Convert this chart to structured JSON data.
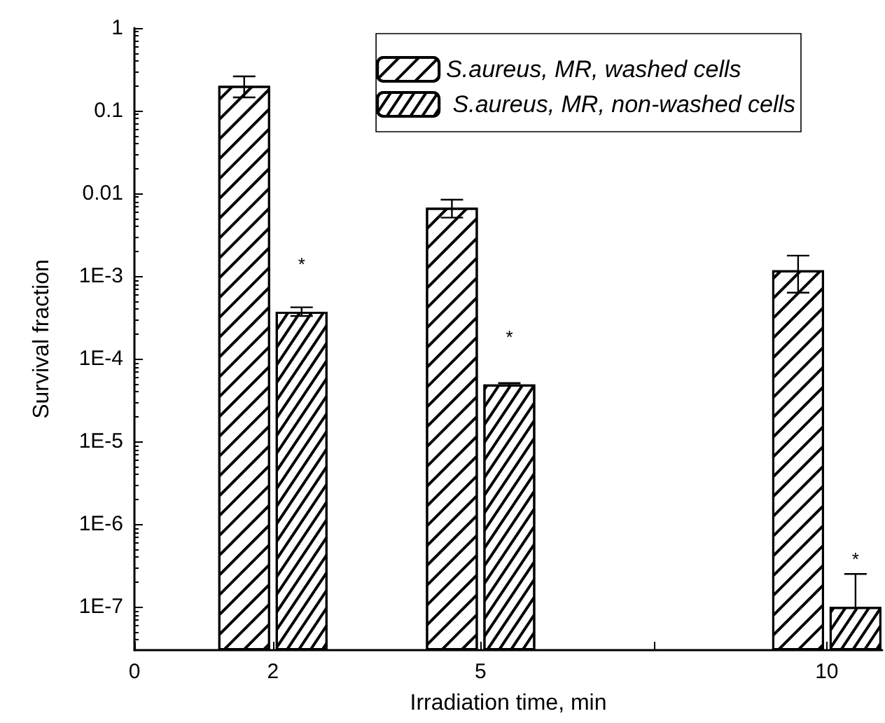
{
  "chart_data": {
    "type": "bar",
    "xlabel": "Irradiation time, min",
    "ylabel": "Survival fraction",
    "x": [
      2,
      5,
      10
    ],
    "series": [
      {
        "name": "S.aureus, MR, washed cells",
        "color": "#ffffff",
        "values": [
          0.2,
          0.0067,
          0.00118
        ],
        "errors": [
          [
            0.145,
            0.26
          ],
          [
            0.0051,
            0.0084
          ],
          [
            0.00063,
            0.00177
          ]
        ]
      },
      {
        "name": " S.aureus, MR, non-washed cells",
        "color": "#ffffff",
        "values": [
          0.00037,
          4.9e-05,
          1e-07
        ],
        "errors": [
          [
            0.00033,
            0.00042
          ],
          [
            4.8e-05,
            5.1e-05
          ],
          [
            1e-07,
            2.5e-07
          ]
        ]
      }
    ],
    "log": "y",
    "xlim": [
      0,
      10.8
    ],
    "xticks": [
      0,
      2,
      5,
      {
        "value": 7.5,
        "label": null
      },
      10
    ],
    "ylim": [
      3e-08,
      1
    ],
    "yticks": [
      {
        "value": 1e-07,
        "label": "1E-7"
      },
      {
        "value": 1e-06,
        "label": "1E-6"
      },
      {
        "value": 1e-05,
        "label": "1E-5"
      },
      {
        "value": 0.0001,
        "label": "1E-4"
      },
      {
        "value": 0.001,
        "label": "1E-3"
      },
      0.01,
      0.1,
      1
    ],
    "annotations": [
      {
        "text": "*",
        "x": 2,
        "y": 0.00037
      },
      {
        "text": "*",
        "x": 5,
        "y": 4.9e-05
      },
      {
        "text": "*",
        "x": 10,
        "y": 1e-07
      }
    ],
    "legend": "top right",
    "grid": false
  }
}
